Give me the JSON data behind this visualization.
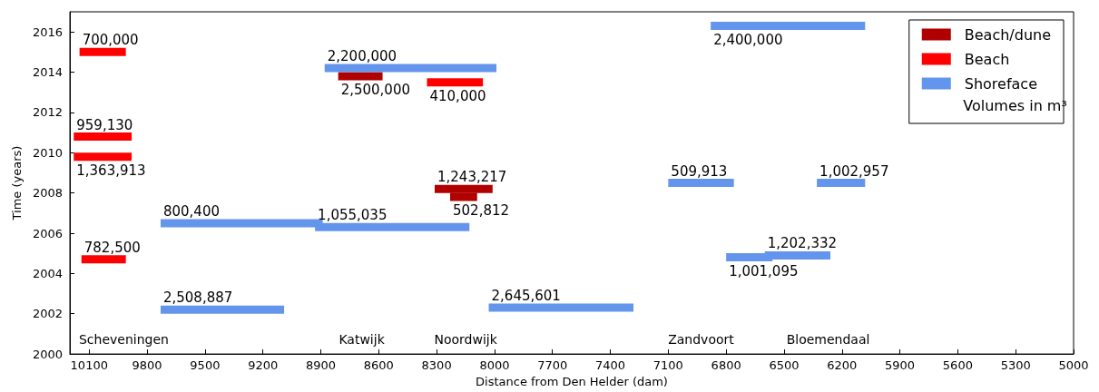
{
  "chart_data": {
    "type": "line",
    "xlabel": "Distance from Den Helder (dam)",
    "ylabel": "Time (years)",
    "legend_title": "Volumes in m³",
    "legend": "top right",
    "marker": "none",
    "line_style": "solid",
    "grid": false,
    "xlim": [
      10200,
      5000
    ],
    "xticks": [
      10100,
      9800,
      9500,
      9200,
      8900,
      8600,
      8300,
      8000,
      7700,
      7400,
      7100,
      6800,
      6500,
      6200,
      5900,
      5600,
      5300,
      5000
    ],
    "ylim": [
      2000,
      2017
    ],
    "yticks": [
      2000,
      2002,
      2004,
      2006,
      2008,
      2010,
      2012,
      2014,
      2016
    ],
    "series": [
      {
        "name": "Beach/dune",
        "color": "#b00000",
        "x": [
          8810,
          8580
        ],
        "values": [
          2013.8,
          2013.8
        ]
      },
      {
        "color": "#b00000",
        "x": [
          8310,
          8010
        ],
        "values": [
          2008.2,
          2008.2
        ]
      },
      {
        "color": "#b00000",
        "x": [
          8230,
          8090
        ],
        "values": [
          2007.8,
          2007.8
        ]
      },
      {
        "name": "Beach",
        "color": "#ff0000",
        "x": [
          10150,
          9910
        ],
        "values": [
          2015,
          2015
        ]
      },
      {
        "color": "#ff0000",
        "x": [
          10180,
          9880
        ],
        "values": [
          2010.8,
          2010.8
        ]
      },
      {
        "color": "#ff0000",
        "x": [
          10180,
          9880
        ],
        "values": [
          2009.8,
          2009.8
        ]
      },
      {
        "color": "#ff0000",
        "x": [
          10140,
          9910
        ],
        "values": [
          2004.7,
          2004.7
        ]
      },
      {
        "color": "#ff0000",
        "x": [
          8350,
          8060
        ],
        "values": [
          2013.5,
          2013.5
        ]
      },
      {
        "name": "Shoreface",
        "color": "#6495ed",
        "x": [
          8880,
          7990
        ],
        "values": [
          2014.2,
          2014.2
        ]
      },
      {
        "color": "#6495ed",
        "x": [
          9730,
          8890
        ],
        "values": [
          2006.5,
          2006.5
        ]
      },
      {
        "color": "#6495ed",
        "x": [
          8930,
          8130
        ],
        "values": [
          2006.3,
          2006.3
        ]
      },
      {
        "color": "#6495ed",
        "x": [
          9730,
          9090
        ],
        "values": [
          2002.2,
          2002.2
        ]
      },
      {
        "color": "#6495ed",
        "x": [
          8030,
          7280
        ],
        "values": [
          2002.3,
          2002.3
        ]
      },
      {
        "color": "#6495ed",
        "x": [
          6880,
          6080
        ],
        "values": [
          2016.3,
          2016.3
        ]
      },
      {
        "color": "#6495ed",
        "x": [
          7100,
          6760
        ],
        "values": [
          2008.5,
          2008.5
        ]
      },
      {
        "color": "#6495ed",
        "x": [
          6330,
          6080
        ],
        "values": [
          2008.5,
          2008.5
        ]
      },
      {
        "color": "#6495ed",
        "x": [
          6800,
          6560
        ],
        "values": [
          2004.8,
          2004.8
        ]
      },
      {
        "color": "#6495ed",
        "x": [
          6600,
          6260
        ],
        "values": [
          2004.9,
          2004.9
        ]
      }
    ],
    "annotations": [
      {
        "text": "2,500,000",
        "x": 8810,
        "y": 2013.8
      },
      {
        "text": "1,243,217",
        "x": 8310,
        "y": 2008.2
      },
      {
        "text": "502,812",
        "x": 8230,
        "y": 2007.8
      },
      {
        "text": "700,000",
        "x": 10150,
        "y": 2015
      },
      {
        "text": "959,130",
        "x": 10180,
        "y": 2010.8
      },
      {
        "text": "1,363,913",
        "x": 10180,
        "y": 2009.8
      },
      {
        "text": "782,500",
        "x": 10140,
        "y": 2004.7
      },
      {
        "text": "410,000",
        "x": 8350,
        "y": 2013.5
      },
      {
        "text": "2,200,000",
        "x": 8880,
        "y": 2014.2
      },
      {
        "text": "800,400",
        "x": 9730,
        "y": 2006.5
      },
      {
        "text": "1,055,035",
        "x": 8930,
        "y": 2006.3
      },
      {
        "text": "2,508,887",
        "x": 9730,
        "y": 2002.2
      },
      {
        "text": "2,645,601",
        "x": 8030,
        "y": 2002.3
      },
      {
        "text": "2,400,000",
        "x": 6880,
        "y": 2016.3
      },
      {
        "text": "509,913",
        "x": 7100,
        "y": 2008.5
      },
      {
        "text": "1,002,957",
        "x": 6330,
        "y": 2008.5
      },
      {
        "text": "1,001,095",
        "x": 6800,
        "y": 2004.8
      },
      {
        "text": "1,202,332",
        "x": 6600,
        "y": 2004.9
      },
      "Scheveningen",
      "Katwijk",
      "Noordwijk",
      "Zandvoort",
      "Bloemendaal"
    ]
  }
}
